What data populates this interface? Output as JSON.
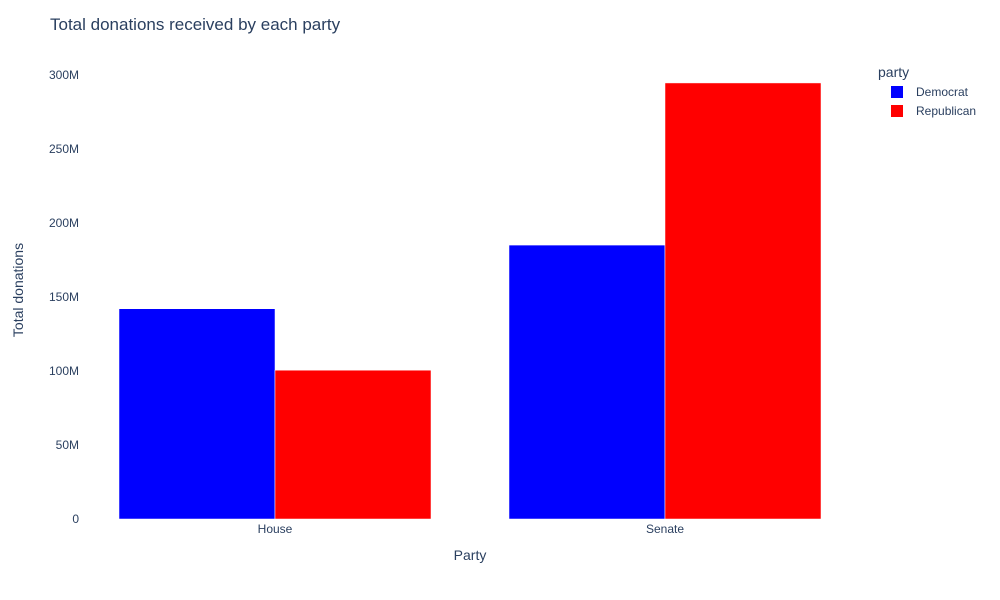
{
  "chart_data": {
    "type": "bar",
    "title": "Total donations received by each party",
    "xlabel": "Party",
    "ylabel": "Total donations",
    "categories": [
      "House",
      "Senate"
    ],
    "series": [
      {
        "name": "Democrat",
        "color": "#0000ff",
        "values": [
          142000000,
          185000000
        ]
      },
      {
        "name": "Republican",
        "color": "#ff0000",
        "values": [
          100500000,
          294500000
        ]
      }
    ],
    "ylim": [
      0,
      310000000
    ],
    "y_ticks": [
      {
        "value": 0,
        "label": "0"
      },
      {
        "value": 50000000,
        "label": "50M"
      },
      {
        "value": 100000000,
        "label": "100M"
      },
      {
        "value": 150000000,
        "label": "150M"
      },
      {
        "value": 200000000,
        "label": "200M"
      },
      {
        "value": 250000000,
        "label": "250M"
      },
      {
        "value": 300000000,
        "label": "300M"
      }
    ],
    "grid": false,
    "barmode": "group",
    "legend": {
      "title": "party",
      "placement": "top-right"
    }
  }
}
